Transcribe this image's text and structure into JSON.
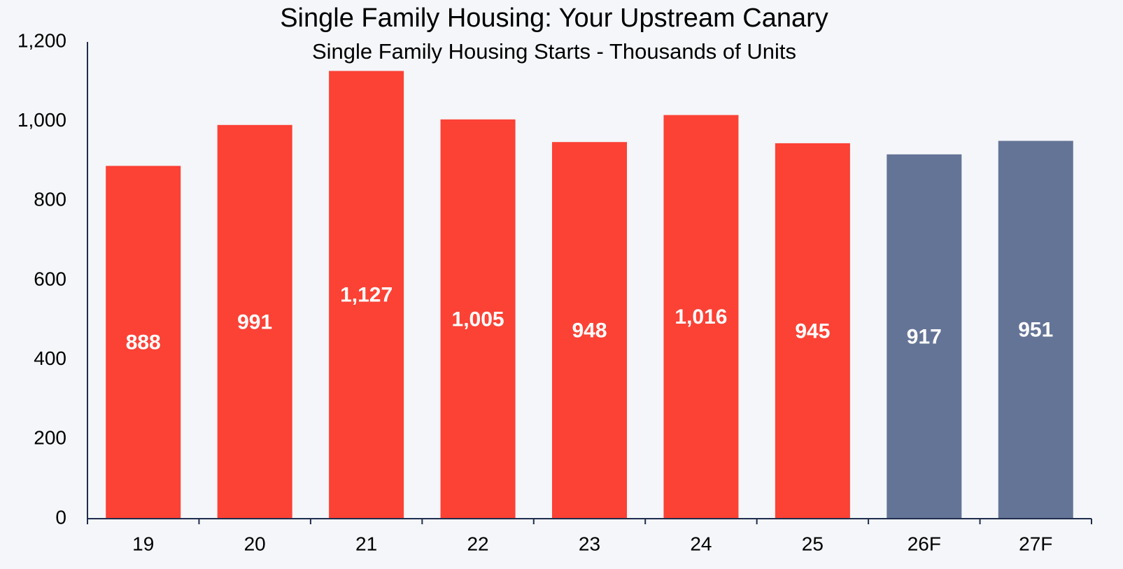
{
  "chart_data": {
    "type": "bar",
    "title": "Single Family Housing: Your Upstream Canary",
    "subtitle": "Single Family Housing Starts - Thousands of Units",
    "categories": [
      "19",
      "20",
      "21",
      "22",
      "23",
      "24",
      "25",
      "26F",
      "27F"
    ],
    "values": [
      888,
      991,
      1127,
      1005,
      948,
      1016,
      945,
      917,
      951
    ],
    "value_labels": [
      "888",
      "991",
      "1,127",
      "1,005",
      "948",
      "1,016",
      "945",
      "917",
      "951"
    ],
    "colors": [
      "#fc4135",
      "#fc4135",
      "#fc4135",
      "#fc4135",
      "#fc4135",
      "#fc4135",
      "#fc4135",
      "#647496",
      "#647496"
    ],
    "ylim": [
      0,
      1200
    ],
    "yticks": [
      0,
      200,
      400,
      600,
      800,
      {
        "value": 1000,
        "label": "1,000"
      },
      {
        "value": 1200,
        "label": "1,200"
      }
    ],
    "grid": false
  }
}
